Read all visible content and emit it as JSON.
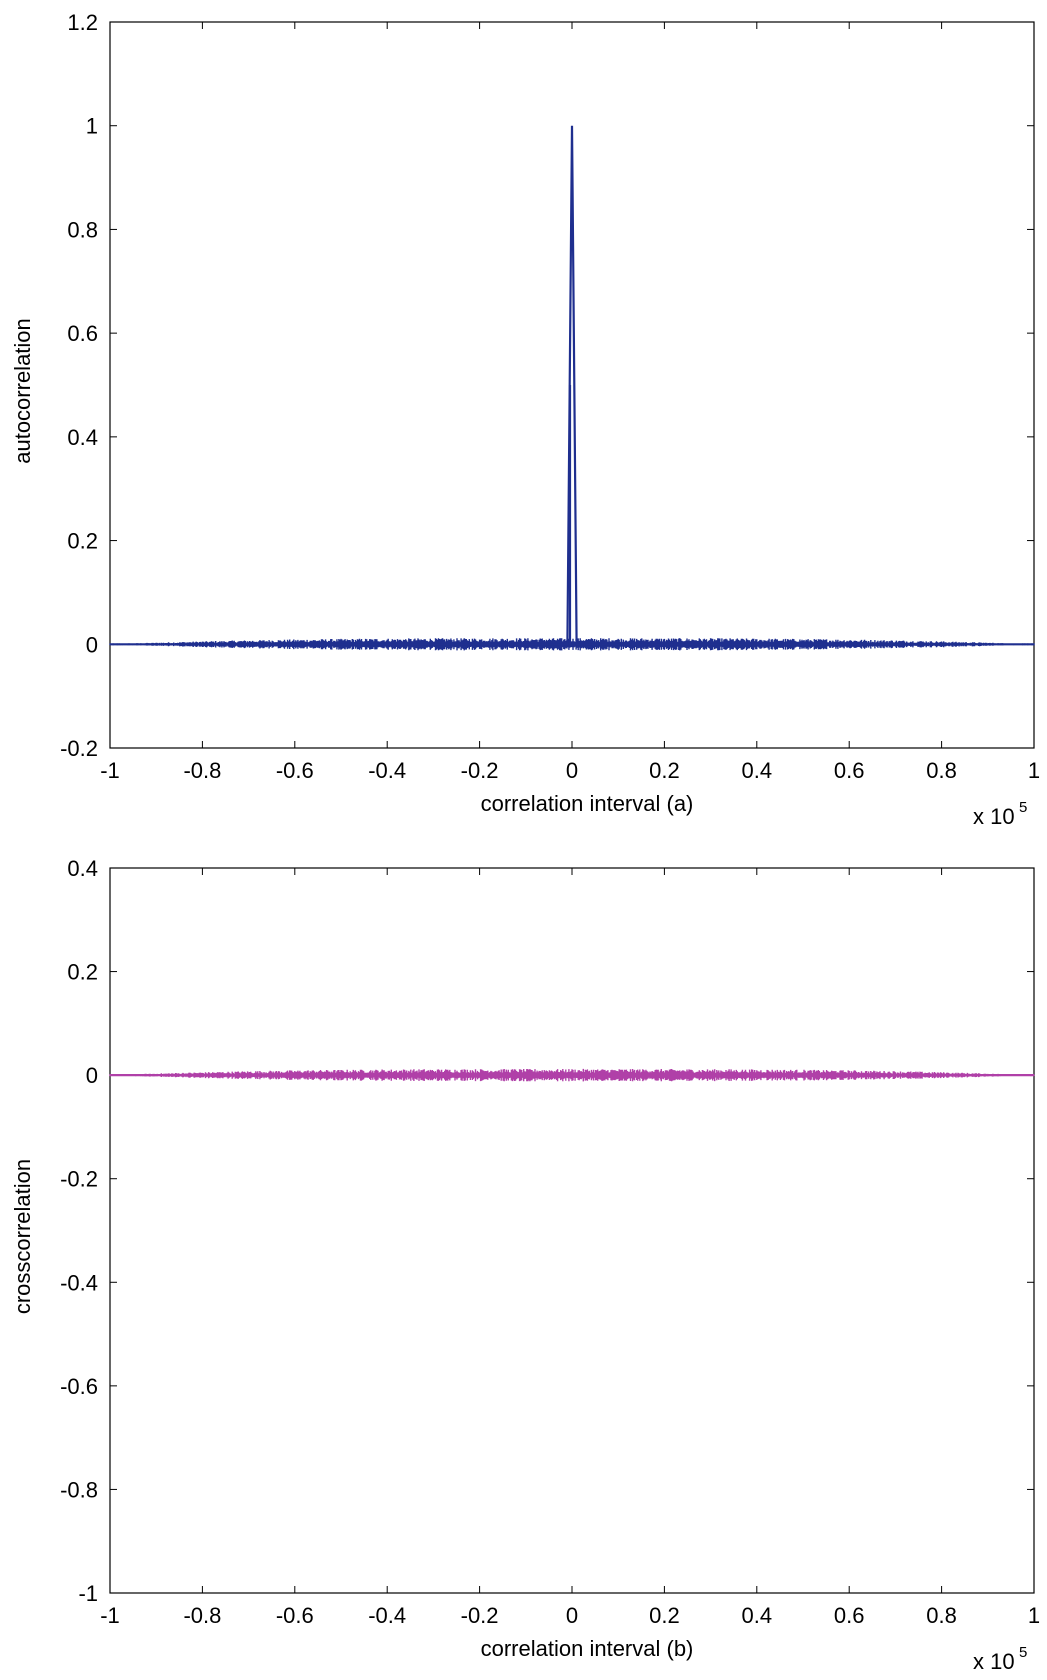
{
  "chart_data": [
    {
      "type": "line",
      "panel": "a",
      "xlabel": "correlation interval  (a)",
      "ylabel": "autocorrelation",
      "x_multiplier": "x 10",
      "x_multiplier_exp": "5",
      "xlim": [
        -1,
        1
      ],
      "ylim": [
        -0.2,
        1.2
      ],
      "xticks": [
        "-1",
        "-0.8",
        "-0.6",
        "-0.4",
        "-0.2",
        "0",
        "0.2",
        "0.4",
        "0.6",
        "0.8",
        "1"
      ],
      "yticks": [
        "-0.2",
        "0",
        "0.2",
        "0.4",
        "0.6",
        "0.8",
        "1",
        "1.2"
      ],
      "grid": false,
      "color": "#1f2f8f",
      "series": [
        {
          "x": [
            -1,
            -0.9,
            -0.8,
            -0.7,
            -0.6,
            -0.5,
            -0.4,
            -0.3,
            -0.2,
            -0.1,
            -0.01,
            0,
            0.01,
            0.1,
            0.2,
            0.3,
            0.4,
            0.5,
            0.6,
            0.7,
            0.8,
            0.9,
            1
          ],
          "y": [
            0,
            0,
            0,
            0,
            0,
            0,
            0,
            0,
            0,
            0,
            0,
            1,
            0,
            0,
            0,
            0,
            0,
            0,
            0,
            0,
            0,
            0,
            0
          ],
          "noise_envelope": 0.012
        }
      ]
    },
    {
      "type": "line",
      "panel": "b",
      "xlabel": "correlation interval  (b)",
      "ylabel": "crosscorrelation",
      "x_multiplier": "x 10",
      "x_multiplier_exp": "5",
      "xlim": [
        -1,
        1
      ],
      "ylim": [
        -1,
        0.4
      ],
      "xticks": [
        "-1",
        "-0.8",
        "-0.6",
        "-0.4",
        "-0.2",
        "0",
        "0.2",
        "0.4",
        "0.6",
        "0.8",
        "1"
      ],
      "yticks": [
        "-1",
        "-0.8",
        "-0.6",
        "-0.4",
        "-0.2",
        "0",
        "0.2",
        "0.4"
      ],
      "grid": false,
      "color": "#b040a8",
      "series": [
        {
          "x": [
            -1,
            -0.8,
            -0.6,
            -0.4,
            -0.2,
            0,
            0.2,
            0.4,
            0.6,
            0.8,
            1
          ],
          "y": [
            0,
            0,
            0,
            0,
            0,
            0,
            0,
            0,
            0,
            0,
            0
          ],
          "noise_envelope": 0.012
        }
      ]
    }
  ]
}
